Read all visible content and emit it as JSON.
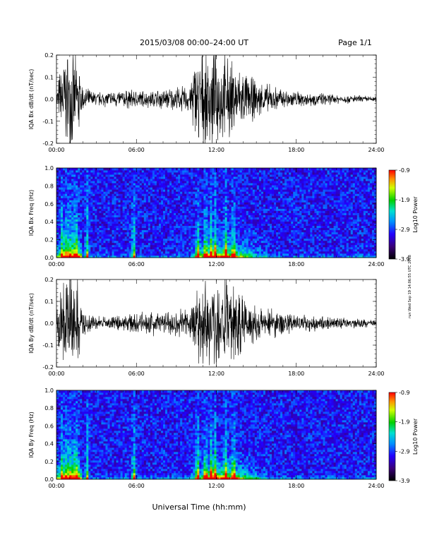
{
  "header": {
    "title": "2015/03/08   00:00–24:00 UT",
    "page": "Page 1/1"
  },
  "side_note": "run Wed Sep 19 14:06:55 UTC 2018",
  "xlabel_global": "Universal Time (hh:mm)",
  "chart_data": [
    {
      "type": "line",
      "ylabel": "IQA Bx dB/dt (nT/sec)",
      "xlim": [
        0,
        24
      ],
      "ylim": [
        -0.2,
        0.2
      ],
      "x_ticks": [
        "00:00",
        "06:00",
        "12:00",
        "18:00",
        "24:00"
      ],
      "y_ticks": [
        "-0.2",
        "-0.1",
        "0.0",
        "0.1",
        "0.2"
      ],
      "series": [
        {
          "x_hours": [
            0,
            0.5,
            1,
            1.2,
            1.5,
            2,
            3,
            4,
            5,
            6,
            7,
            8,
            9,
            10,
            10.5,
            11,
            12,
            13,
            14,
            15,
            16,
            17,
            18,
            19,
            20,
            21,
            22,
            23,
            24
          ],
          "amplitude": [
            0.04,
            0.2,
            0.2,
            0.2,
            0.2,
            0.05,
            0.03,
            0.035,
            0.04,
            0.04,
            0.035,
            0.045,
            0.05,
            0.06,
            0.2,
            0.2,
            0.2,
            0.17,
            0.12,
            0.08,
            0.06,
            0.045,
            0.035,
            0.03,
            0.025,
            0.02,
            0.018,
            0.015,
            0.012
          ]
        }
      ]
    },
    {
      "type": "heatmap",
      "ylabel": "IQA Bx Freq (Hz)",
      "xlim": [
        0,
        24
      ],
      "ylim": [
        0,
        1.0
      ],
      "x_ticks": [
        "00:00",
        "06:00",
        "12:00",
        "18:00",
        "24:00"
      ],
      "y_ticks": [
        "0.0",
        "0.2",
        "0.4",
        "0.6",
        "0.8",
        "1.0"
      ],
      "colorbar": {
        "label": "Log10 Power",
        "ticks": [
          "-0.9",
          "-1.9",
          "-2.9",
          "-3.9"
        ],
        "range": [
          -3.9,
          -0.9
        ]
      }
    },
    {
      "type": "line",
      "ylabel": "IQA By dB/dt (nT/sec)",
      "xlim": [
        0,
        24
      ],
      "ylim": [
        -0.2,
        0.2
      ],
      "x_ticks": [
        "00:00",
        "06:00",
        "12:00",
        "18:00",
        "24:00"
      ],
      "y_ticks": [
        "-0.2",
        "-0.1",
        "0.0",
        "0.1",
        "0.2"
      ],
      "series": [
        {
          "x_hours": [
            0,
            0.5,
            1,
            1.2,
            1.5,
            2,
            3,
            4,
            5,
            6,
            7,
            8,
            9,
            10,
            10.5,
            11,
            12,
            13,
            14,
            15,
            16,
            17,
            18,
            19,
            20,
            21,
            22,
            23,
            24
          ],
          "amplitude": [
            0.05,
            0.2,
            0.2,
            0.2,
            0.2,
            0.06,
            0.03,
            0.03,
            0.035,
            0.04,
            0.05,
            0.055,
            0.06,
            0.07,
            0.2,
            0.2,
            0.2,
            0.19,
            0.14,
            0.09,
            0.07,
            0.05,
            0.04,
            0.035,
            0.03,
            0.025,
            0.02,
            0.018,
            0.015
          ]
        }
      ]
    },
    {
      "type": "heatmap",
      "ylabel": "IQA By Freq (Hz)",
      "xlim": [
        0,
        24
      ],
      "ylim": [
        0,
        1.0
      ],
      "x_ticks": [
        "00:00",
        "06:00",
        "12:00",
        "18:00",
        "24:00"
      ],
      "y_ticks": [
        "0.0",
        "0.2",
        "0.4",
        "0.6",
        "0.8",
        "1.0"
      ],
      "colorbar": {
        "label": "Log10 Power",
        "ticks": [
          "-0.9",
          "-1.9",
          "-2.9",
          "-3.9"
        ],
        "range": [
          -3.9,
          -0.9
        ]
      }
    }
  ]
}
